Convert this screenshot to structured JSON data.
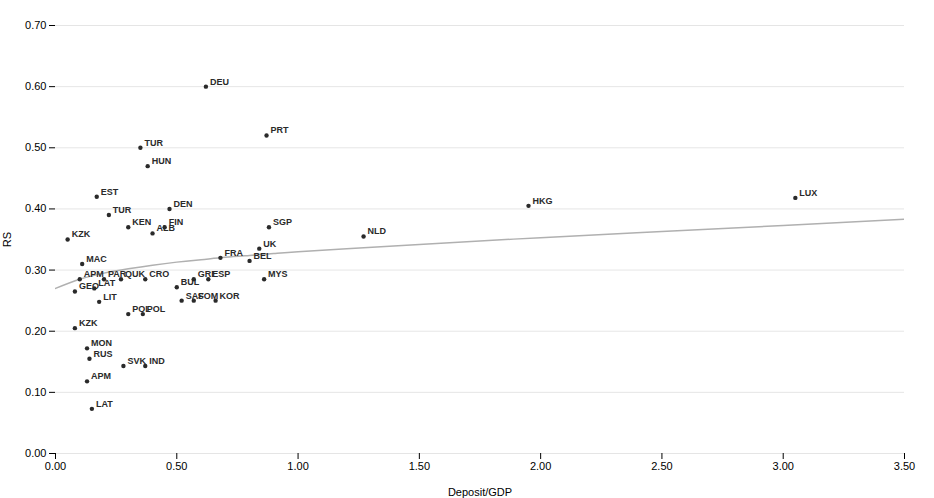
{
  "chart_data": {
    "type": "scatter",
    "xlabel": "Deposit/GDP",
    "ylabel": "RS",
    "series": [
      {
        "type": "line",
        "color": "#b0b0b0",
        "x": [
          0.0,
          0.1,
          0.2,
          0.3,
          0.4,
          0.5,
          0.6,
          0.7,
          0.8,
          0.9,
          1.0,
          1.2,
          1.5,
          2.0,
          2.5,
          3.0,
          3.5
        ],
        "values": [
          0.27,
          0.285,
          0.295,
          0.302,
          0.308,
          0.313,
          0.317,
          0.321,
          0.324,
          0.327,
          0.33,
          0.335,
          0.342,
          0.353,
          0.363,
          0.373,
          0.383
        ]
      },
      {
        "type": "scatter",
        "color": "#2a2a2a",
        "labels": [
          "DEU",
          "PRT",
          "TUR",
          "HUN",
          "EST",
          "TUR",
          "DEN",
          "KEN",
          "FIN",
          "ALB",
          "KZK",
          "SGP",
          "NLD",
          "MAC",
          "FRA",
          "UK",
          "BEL",
          "APM",
          "PAR",
          "QUK",
          "CRO",
          "GRE",
          "ESP",
          "MYS",
          "BUL",
          "GEO",
          "LAT",
          "LIT",
          "POL",
          "POL",
          "SAF",
          "SOM",
          "KOR",
          "KZK",
          "MON",
          "RUS",
          "SVK",
          "IND",
          "APM",
          "LAT",
          "HKG",
          "LUX"
        ],
        "x": [
          0.62,
          0.87,
          0.35,
          0.38,
          0.17,
          0.22,
          0.47,
          0.3,
          0.45,
          0.4,
          0.05,
          0.88,
          1.27,
          0.11,
          0.68,
          0.84,
          0.8,
          0.1,
          0.2,
          0.27,
          0.37,
          0.57,
          0.63,
          0.86,
          0.5,
          0.08,
          0.16,
          0.18,
          0.3,
          0.36,
          0.52,
          0.57,
          0.66,
          0.08,
          0.13,
          0.14,
          0.28,
          0.37,
          0.13,
          0.15,
          1.95,
          3.05
        ],
        "values": [
          0.6,
          0.52,
          0.5,
          0.47,
          0.42,
          0.39,
          0.4,
          0.37,
          0.37,
          0.36,
          0.35,
          0.37,
          0.355,
          0.31,
          0.32,
          0.335,
          0.315,
          0.285,
          0.285,
          0.285,
          0.285,
          0.285,
          0.285,
          0.285,
          0.272,
          0.265,
          0.27,
          0.248,
          0.228,
          0.228,
          0.25,
          0.25,
          0.25,
          0.205,
          0.172,
          0.155,
          0.143,
          0.143,
          0.118,
          0.073,
          0.405,
          0.418
        ]
      }
    ],
    "xlim": [
      0.0,
      3.5
    ],
    "ylim": [
      0.0,
      0.7
    ],
    "xticks": [
      {
        "value": 0.0,
        "label": "0.00"
      },
      {
        "value": 0.5,
        "label": "0.50"
      },
      {
        "value": 1.0,
        "label": "1.00"
      },
      {
        "value": 1.5,
        "label": "1.50"
      },
      {
        "value": 2.0,
        "label": "2.00"
      },
      {
        "value": 2.5,
        "label": "2.50"
      },
      {
        "value": 3.0,
        "label": "3.00"
      },
      {
        "value": 3.5,
        "label": "3.50"
      }
    ],
    "yticks": [
      {
        "value": 0.0,
        "label": "0.00"
      },
      {
        "value": 0.1,
        "label": "0.10"
      },
      {
        "value": 0.2,
        "label": "0.20"
      },
      {
        "value": 0.3,
        "label": "0.30"
      },
      {
        "value": 0.4,
        "label": "0.40"
      },
      {
        "value": 0.5,
        "label": "0.50"
      },
      {
        "value": 0.6,
        "label": "0.60"
      },
      {
        "value": 0.7,
        "label": "0.70"
      }
    ],
    "grid": "y"
  }
}
